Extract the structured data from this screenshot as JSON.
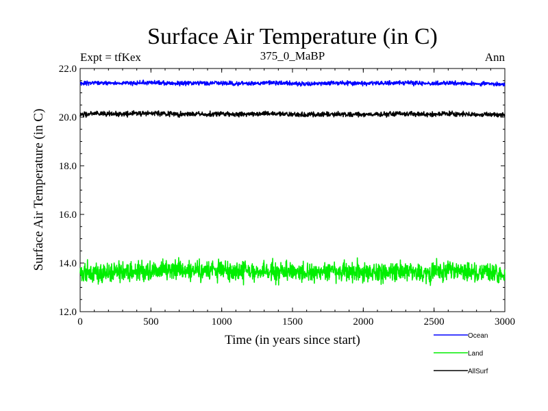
{
  "chart_data": {
    "type": "line",
    "title": "Surface Air Temperature (in C)",
    "subtitle": "375_0_MaBP",
    "experiment_label": "Expt = tfKex",
    "period_label": "Ann",
    "xlabel": "Time (in years since start)",
    "ylabel": "Surface Air Temperature (in C)",
    "xlim": [
      0,
      3000
    ],
    "ylim": [
      12.0,
      22.0
    ],
    "x_ticks": [
      0,
      500,
      1000,
      1500,
      2000,
      2500,
      3000
    ],
    "y_ticks": [
      12.0,
      14.0,
      16.0,
      18.0,
      20.0,
      22.0
    ],
    "y_tick_labels": [
      "12.0",
      "14.0",
      "16.0",
      "18.0",
      "20.0",
      "22.0"
    ],
    "grid": false,
    "legend_position": "bottom-right",
    "x_step": 100,
    "series": [
      {
        "name": "Ocean",
        "color": "#0000ff",
        "x": [
          0,
          100,
          200,
          300,
          400,
          500,
          600,
          700,
          800,
          900,
          1000,
          1100,
          1200,
          1300,
          1400,
          1500,
          1600,
          1700,
          1800,
          1900,
          2000,
          2100,
          2200,
          2300,
          2400,
          2500,
          2600,
          2700,
          2800,
          2900,
          3000
        ],
        "values": [
          21.38,
          21.42,
          21.4,
          21.39,
          21.41,
          21.43,
          21.4,
          21.38,
          21.41,
          21.39,
          21.4,
          21.37,
          21.39,
          21.41,
          21.4,
          21.38,
          21.36,
          21.39,
          21.41,
          21.4,
          21.38,
          21.39,
          21.4,
          21.41,
          21.39,
          21.38,
          21.4,
          21.39,
          21.37,
          21.38,
          21.35
        ],
        "band": 0.06
      },
      {
        "name": "Land",
        "color": "#00ee00",
        "x": [
          0,
          100,
          200,
          300,
          400,
          500,
          600,
          700,
          800,
          900,
          1000,
          1100,
          1200,
          1300,
          1400,
          1500,
          1600,
          1700,
          1800,
          1900,
          2000,
          2100,
          2200,
          2300,
          2400,
          2500,
          2600,
          2700,
          2800,
          2900,
          3000
        ],
        "values": [
          13.62,
          13.68,
          13.6,
          13.65,
          13.64,
          13.7,
          13.72,
          13.66,
          13.62,
          13.64,
          13.7,
          13.67,
          13.63,
          13.66,
          13.61,
          13.65,
          13.6,
          13.58,
          13.66,
          13.64,
          13.62,
          13.63,
          13.66,
          13.64,
          13.6,
          13.62,
          13.68,
          13.63,
          13.62,
          13.6,
          13.58
        ],
        "band": 0.3
      },
      {
        "name": "AllSurf",
        "color": "#000000",
        "x": [
          0,
          100,
          200,
          300,
          400,
          500,
          600,
          700,
          800,
          900,
          1000,
          1100,
          1200,
          1300,
          1400,
          1500,
          1600,
          1700,
          1800,
          1900,
          2000,
          2100,
          2200,
          2300,
          2400,
          2500,
          2600,
          2700,
          2800,
          2900,
          3000
        ],
        "values": [
          20.1,
          20.15,
          20.13,
          20.12,
          20.14,
          20.16,
          20.14,
          20.12,
          20.13,
          20.12,
          20.14,
          20.11,
          20.12,
          20.14,
          20.12,
          20.11,
          20.09,
          20.11,
          20.13,
          20.12,
          20.11,
          20.12,
          20.13,
          20.14,
          20.12,
          20.11,
          20.13,
          20.12,
          20.1,
          20.11,
          20.09
        ],
        "band": 0.07
      }
    ]
  }
}
